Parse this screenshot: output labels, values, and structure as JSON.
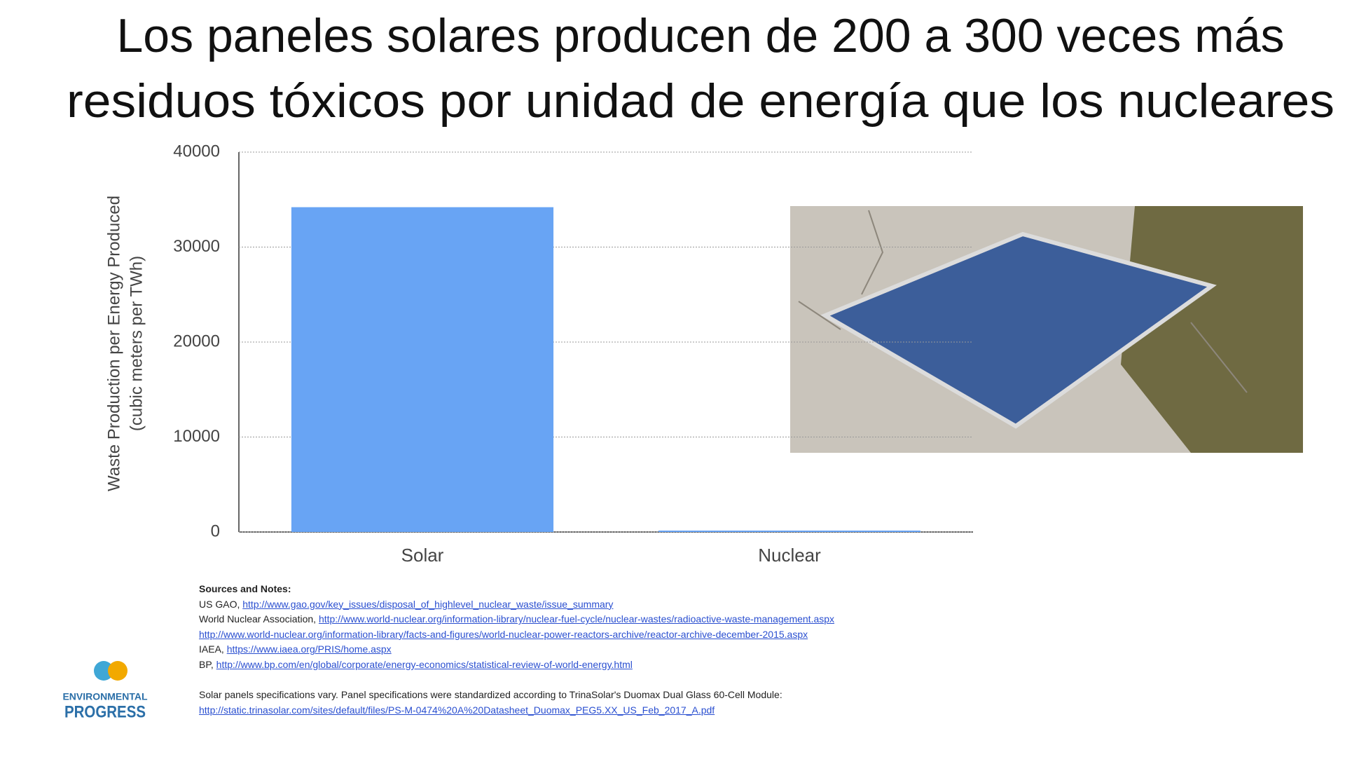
{
  "chart_data": {
    "type": "bar",
    "title": [
      "Los paneles solares producen de 200 a 300 veces más",
      "residuos tóxicos por unidad de energía que los nucleares"
    ],
    "ylabel": [
      "Waste Production per Energy Produced",
      "(cubic meters per TWh)"
    ],
    "categories": [
      "Solar",
      "Nuclear"
    ],
    "values": [
      34200,
      150
    ],
    "color": "#68a4f4",
    "ylim": [
      0,
      40000
    ],
    "yticks": [
      0,
      10000,
      20000,
      30000,
      40000
    ],
    "grid": true
  },
  "notes": {
    "heading": "Sources and Notes:",
    "lines": [
      {
        "text": "US GAO,",
        "link": "http://www.gao.gov/key_issues/disposal_of_highlevel_nuclear_waste/issue_summary"
      },
      {
        "text": "World Nuclear Association,",
        "link": "http://www.world-nuclear.org/information-library/nuclear-fuel-cycle/nuclear-wastes/radioactive-waste-management.aspx"
      },
      {
        "link": "http://www.world-nuclear.org/information-library/facts-and-figures/world-nuclear-power-reactors-archive/reactor-archive-december-2015.aspx"
      },
      {
        "text": "IAEA,",
        "link": "https://www.iaea.org/PRIS/home.aspx"
      },
      {
        "text": "BP,",
        "link": "http://www.bp.com/en/global/corporate/energy-economics/statistical-review-of-world-energy.html"
      }
    ],
    "spec": {
      "text": "Solar panels specifications vary. Panel specifications were standardized according to TrinaSolar's Duomax Dual Glass 60-Cell Module:",
      "link": "http://static.trinasolar.com/sites/default/files/PS-M-0474%20A%20Datasheet_Duomax_PEG5.XX_US_Feb_2017_A.pdf"
    }
  },
  "logo": [
    "ENVIRONMENTAL",
    "PROGRESS"
  ]
}
